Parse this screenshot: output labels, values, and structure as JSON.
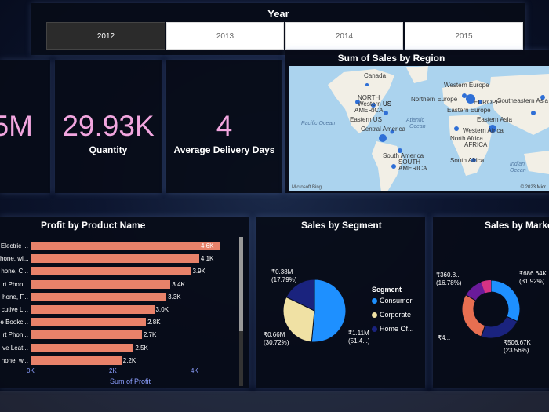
{
  "slicer": {
    "title": "Year",
    "options": [
      "2012",
      "2013",
      "2014",
      "2015"
    ],
    "selected": "2012"
  },
  "kpis": {
    "sales": {
      "value": "5M"
    },
    "quantity": {
      "value": "29.93K",
      "label": "Quantity"
    },
    "delivery": {
      "value": "4",
      "label": "Average Delivery Days"
    }
  },
  "map": {
    "title": "Sum of Sales by Region",
    "labels": {
      "canada": "Canada",
      "western_us": "Western US",
      "north_america": "NORTH",
      "america": "AMERICA",
      "central_us": "US",
      "eastern_us": "Eastern US",
      "central_america": "Central America",
      "south_america": "South America",
      "south_america2": "SOUTH",
      "america2": "AMERICA",
      "western_europe": "Western Europe",
      "northern_europe": "Northern Europe",
      "europe": "EUROPE",
      "eastern_europe": "Eastern Europe",
      "eastern_asia": "Eastern Asia",
      "southeastern_asia": "Southeastern Asia",
      "western_africa": "Western Africa",
      "north_africa": "North Africa",
      "africa": "AFRICA",
      "southern_africa": "South Africa"
    },
    "oceans": {
      "pacific": "Pacific Ocean",
      "atlantic": "Atlantic",
      "atlantic2": "Ocean",
      "indian": "Indian",
      "indian2": "Ocean"
    },
    "attribution": "© 2023 Micr",
    "bing": "Microsoft Bing"
  },
  "profit": {
    "title": "Profit by Product Name",
    "axis_title": "Sum of Profit",
    "ticks": [
      "0K",
      "2K",
      "4K"
    ],
    "xlim": [
      0,
      4600
    ],
    "bar_color": "#e8826a"
  },
  "segment": {
    "title": "Sales by Segment",
    "legend_title": "Segment",
    "legend": [
      "Consumer",
      "Corporate",
      "Home Of..."
    ],
    "slice_labels": [
      [
        "₹1.11M",
        "(51.4...)"
      ],
      [
        "₹0.66M",
        "(30.72%)"
      ],
      [
        "₹0.38M",
        "(17.79%)"
      ]
    ]
  },
  "market": {
    "title": "Sales by Marke",
    "slice_labels": [
      [
        "₹686.64K",
        "(31.92%)"
      ],
      [
        "₹506.67K",
        "(23.56%)"
      ],
      [
        "₹4...",
        "(...)"
      ],
      [
        "₹360.8...",
        "(16.78%)"
      ]
    ]
  },
  "chart_data": [
    {
      "type": "bar",
      "title": "Profit by Product Name",
      "xlabel": "Sum of Profit",
      "categories": [
        "Electric ...",
        "hone, wi...",
        "hone, C...",
        "rt Phon...",
        "hone, F...",
        "cutive L...",
        "e Bookc...",
        "rt Phon...",
        "ve Leat...",
        "hone, w..."
      ],
      "values": [
        4600,
        4100,
        3900,
        3400,
        3300,
        3000,
        2800,
        2700,
        2500,
        2200
      ],
      "data_labels": [
        "4.6K",
        "4.1K",
        "3.9K",
        "3.4K",
        "3.3K",
        "3.0K",
        "2.8K",
        "2.7K",
        "2.5K",
        "2.2K"
      ],
      "xlim": [
        0,
        4600
      ]
    },
    {
      "type": "pie",
      "title": "Sales by Segment",
      "categories": [
        "Consumer",
        "Corporate",
        "Home Of..."
      ],
      "values": [
        51.49,
        30.72,
        17.79
      ],
      "colors": [
        "#1e90ff",
        "#f0e1a4",
        "#1a237e"
      ]
    },
    {
      "type": "pie",
      "title": "Sales by Marke",
      "values": [
        31.92,
        23.56,
        27.74,
        16.78
      ],
      "colors": [
        "#1e90ff",
        "#1a237e",
        "#e76f51",
        "#6a1b9a"
      ],
      "accent_color": "#d63384"
    }
  ]
}
